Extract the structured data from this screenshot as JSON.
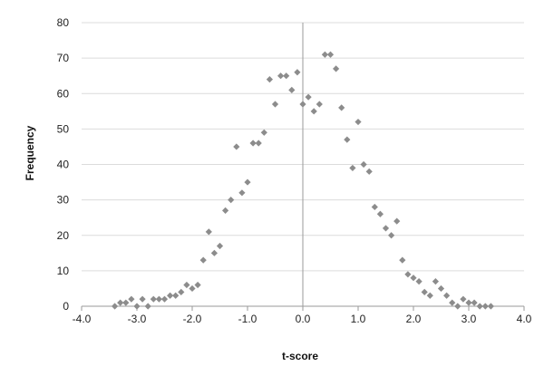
{
  "chart_data": {
    "type": "scatter",
    "title": "",
    "xlabel": "t-score",
    "ylabel": "Frequency",
    "xlim": [
      -4.0,
      4.0
    ],
    "ylim": [
      0,
      80
    ],
    "x_ticks": [
      -4.0,
      -3.0,
      -2.0,
      -1.0,
      0.0,
      1.0,
      2.0,
      3.0,
      4.0
    ],
    "x_tick_labels": [
      "-4.0",
      "-3.0",
      "-2.0",
      "-1.0",
      "0.0",
      "1.0",
      "2.0",
      "3.0",
      "4.0"
    ],
    "y_ticks": [
      0,
      10,
      20,
      30,
      40,
      50,
      60,
      70,
      80
    ],
    "y_tick_labels": [
      "0",
      "10",
      "20",
      "30",
      "40",
      "50",
      "60",
      "70",
      "80"
    ],
    "grid": true,
    "legend": "none",
    "colors": {
      "marker": "#8c8c8c",
      "grid": "#dcdcdc",
      "axis": "#9a9a9a"
    },
    "series": [
      {
        "points": [
          [
            -3.4,
            0
          ],
          [
            -3.3,
            1
          ],
          [
            -3.2,
            1
          ],
          [
            -3.1,
            2
          ],
          [
            -3.0,
            0
          ],
          [
            -2.9,
            2
          ],
          [
            -2.8,
            0
          ],
          [
            -2.7,
            2
          ],
          [
            -2.6,
            2
          ],
          [
            -2.5,
            2
          ],
          [
            -2.4,
            3
          ],
          [
            -2.3,
            3
          ],
          [
            -2.2,
            4
          ],
          [
            -2.1,
            6
          ],
          [
            -2.0,
            5
          ],
          [
            -1.9,
            6
          ],
          [
            -1.8,
            13
          ],
          [
            -1.7,
            21
          ],
          [
            -1.6,
            15
          ],
          [
            -1.5,
            17
          ],
          [
            -1.4,
            27
          ],
          [
            -1.3,
            30
          ],
          [
            -1.2,
            45
          ],
          [
            -1.1,
            32
          ],
          [
            -1.0,
            35
          ],
          [
            -0.9,
            46
          ],
          [
            -0.8,
            46
          ],
          [
            -0.7,
            49
          ],
          [
            -0.6,
            64
          ],
          [
            -0.5,
            57
          ],
          [
            -0.4,
            65
          ],
          [
            -0.3,
            65
          ],
          [
            -0.2,
            61
          ],
          [
            -0.1,
            66
          ],
          [
            0.0,
            57
          ],
          [
            0.1,
            59
          ],
          [
            0.2,
            55
          ],
          [
            0.3,
            57
          ],
          [
            0.4,
            71
          ],
          [
            0.5,
            71
          ],
          [
            0.6,
            67
          ],
          [
            0.7,
            56
          ],
          [
            0.8,
            47
          ],
          [
            0.9,
            39
          ],
          [
            1.0,
            52
          ],
          [
            1.1,
            40
          ],
          [
            1.2,
            38
          ],
          [
            1.3,
            28
          ],
          [
            1.4,
            26
          ],
          [
            1.5,
            22
          ],
          [
            1.6,
            20
          ],
          [
            1.7,
            24
          ],
          [
            1.8,
            13
          ],
          [
            1.9,
            9
          ],
          [
            2.0,
            8
          ],
          [
            2.1,
            7
          ],
          [
            2.2,
            4
          ],
          [
            2.3,
            3
          ],
          [
            2.4,
            7
          ],
          [
            2.5,
            5
          ],
          [
            2.6,
            3
          ],
          [
            2.7,
            1
          ],
          [
            2.8,
            0
          ],
          [
            2.9,
            2
          ],
          [
            3.0,
            1
          ],
          [
            3.1,
            1
          ],
          [
            3.2,
            0
          ],
          [
            3.3,
            0
          ],
          [
            3.4,
            0
          ]
        ]
      }
    ]
  }
}
